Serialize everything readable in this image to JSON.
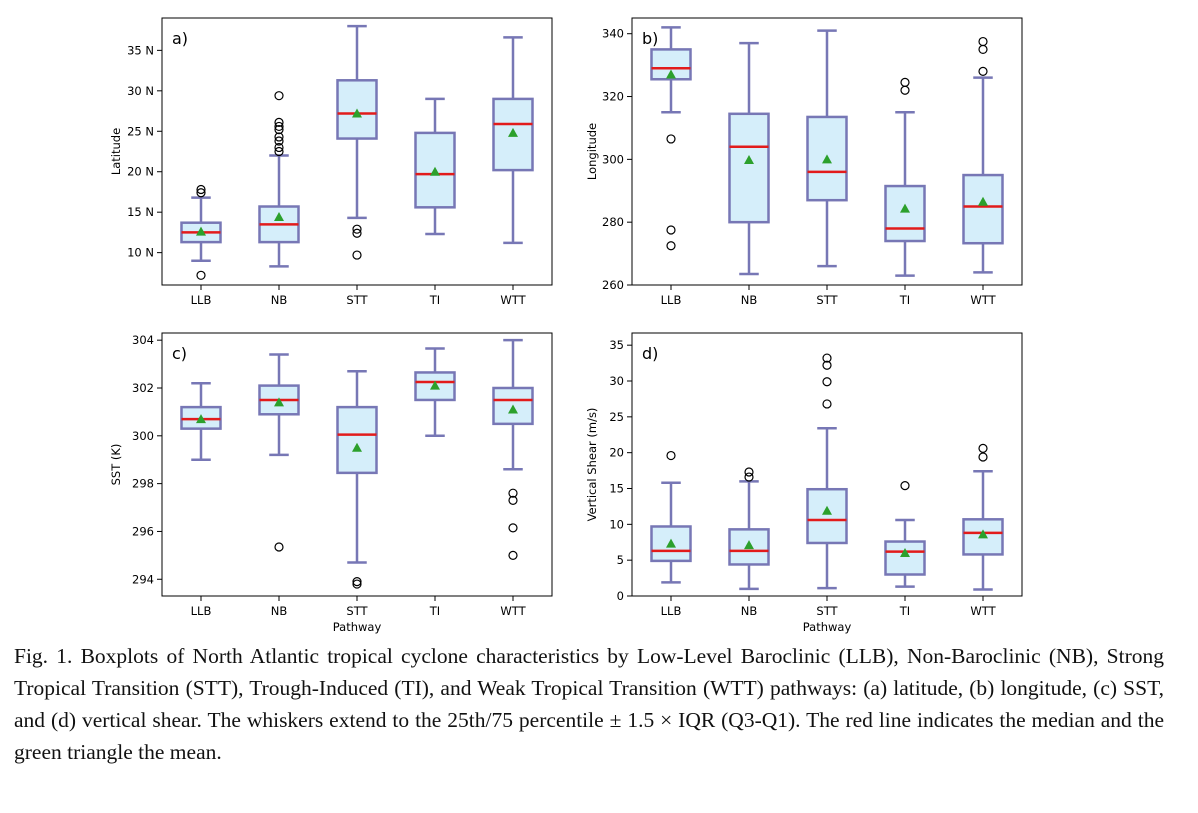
{
  "caption": "Fig. 1. Boxplots of North Atlantic tropical cyclone characteristics by Low-Level Baroclinic (LLB), Non-Baroclinic (NB), Strong Tropical Transition (STT), Trough-Induced (TI), and Weak Tropical Transition (WTT) pathways: (a) latitude, (b) longitude, (c) SST, and (d) vertical shear. The whiskers extend to the 25th/75 percentile ± 1.5 × IQR (Q3-Q1). The red line indicates the median and the green triangle the mean.",
  "colors": {
    "box_fill": "#d5eefa",
    "box_edge": "#7777b5",
    "median": "#e21b1b",
    "mean": "#2ca02c",
    "axis": "#000000"
  },
  "chart_data": [
    {
      "type": "box",
      "panel_label": "a)",
      "categories": [
        "LLB",
        "NB",
        "STT",
        "TI",
        "WTT"
      ],
      "xlabel": "",
      "ylabel": "Latitude",
      "ylim": [
        6,
        39
      ],
      "yticks": [
        10,
        15,
        20,
        25,
        30,
        35
      ],
      "ytick_labels": [
        "10 N",
        "15 N",
        "20 N",
        "25 N",
        "30 N",
        "35 N"
      ],
      "boxes": [
        {
          "whisker_low": 9,
          "q1": 11.3,
          "median": 12.5,
          "q3": 13.7,
          "whisker_high": 16.8,
          "mean": 12.6,
          "outliers": [
            7.2,
            17.4,
            17.8
          ]
        },
        {
          "whisker_low": 8.3,
          "q1": 11.3,
          "median": 13.5,
          "q3": 15.7,
          "whisker_high": 22,
          "mean": 14.4,
          "outliers": [
            22.5,
            23,
            23.8,
            24.3,
            25.2,
            25.6,
            26.1,
            29.4
          ]
        },
        {
          "whisker_low": 14.3,
          "q1": 24.1,
          "median": 27.2,
          "q3": 31.3,
          "whisker_high": 38,
          "mean": 27.2,
          "outliers": [
            9.7,
            12.4,
            12.9
          ]
        },
        {
          "whisker_low": 12.3,
          "q1": 15.6,
          "median": 19.7,
          "q3": 24.8,
          "whisker_high": 29,
          "mean": 20,
          "outliers": []
        },
        {
          "whisker_low": 11.2,
          "q1": 20.2,
          "median": 25.9,
          "q3": 29,
          "whisker_high": 36.6,
          "mean": 24.8,
          "outliers": []
        }
      ]
    },
    {
      "type": "box",
      "panel_label": "b)",
      "categories": [
        "LLB",
        "NB",
        "STT",
        "TI",
        "WTT"
      ],
      "xlabel": "",
      "ylabel": "Longitude",
      "ylim": [
        260,
        345
      ],
      "yticks": [
        260,
        280,
        300,
        320,
        340
      ],
      "ytick_labels": [
        "260",
        "280",
        "300",
        "320",
        "340"
      ],
      "boxes": [
        {
          "whisker_low": 315,
          "q1": 325.5,
          "median": 329,
          "q3": 335,
          "whisker_high": 342,
          "mean": 327,
          "outliers": [
            306.5,
            277.5,
            272.5
          ]
        },
        {
          "whisker_low": 263.5,
          "q1": 280,
          "median": 304,
          "q3": 314.5,
          "whisker_high": 337,
          "mean": 299.8,
          "outliers": []
        },
        {
          "whisker_low": 266,
          "q1": 287,
          "median": 296,
          "q3": 313.5,
          "whisker_high": 341,
          "mean": 300,
          "outliers": []
        },
        {
          "whisker_low": 263,
          "q1": 274,
          "median": 278,
          "q3": 291.5,
          "whisker_high": 315,
          "mean": 284.3,
          "outliers": [
            322,
            324.5
          ]
        },
        {
          "whisker_low": 264,
          "q1": 273.3,
          "median": 285,
          "q3": 295,
          "whisker_high": 326,
          "mean": 286.5,
          "outliers": [
            328,
            335,
            337.5
          ]
        }
      ]
    },
    {
      "type": "box",
      "panel_label": "c)",
      "categories": [
        "LLB",
        "NB",
        "STT",
        "TI",
        "WTT"
      ],
      "xlabel": "Pathway",
      "ylabel": "SST (K)",
      "ylim": [
        293.3,
        304.3
      ],
      "yticks": [
        294,
        296,
        298,
        300,
        302,
        304
      ],
      "ytick_labels": [
        "294",
        "296",
        "298",
        "300",
        "302",
        "304"
      ],
      "boxes": [
        {
          "whisker_low": 299,
          "q1": 300.3,
          "median": 300.7,
          "q3": 301.2,
          "whisker_high": 302.2,
          "mean": 300.7,
          "outliers": []
        },
        {
          "whisker_low": 299.2,
          "q1": 300.9,
          "median": 301.5,
          "q3": 302.1,
          "whisker_high": 303.4,
          "mean": 301.4,
          "outliers": [
            295.35
          ]
        },
        {
          "whisker_low": 294.7,
          "q1": 298.45,
          "median": 300.05,
          "q3": 301.2,
          "whisker_high": 302.7,
          "mean": 299.5,
          "outliers": [
            293.8,
            293.9
          ]
        },
        {
          "whisker_low": 300,
          "q1": 301.5,
          "median": 302.25,
          "q3": 302.65,
          "whisker_high": 303.65,
          "mean": 302.1,
          "outliers": []
        },
        {
          "whisker_low": 298.6,
          "q1": 300.5,
          "median": 301.5,
          "q3": 302,
          "whisker_high": 304,
          "mean": 301.1,
          "outliers": [
            297.6,
            297.3,
            296.15,
            295
          ]
        }
      ]
    },
    {
      "type": "box",
      "panel_label": "d)",
      "categories": [
        "LLB",
        "NB",
        "STT",
        "TI",
        "WTT"
      ],
      "xlabel": "Pathway",
      "ylabel": "Vertical Shear (m/s)",
      "ylim": [
        0,
        36.7
      ],
      "yticks": [
        0,
        5,
        10,
        15,
        20,
        25,
        30,
        35
      ],
      "ytick_labels": [
        "0",
        "5",
        "10",
        "15",
        "20",
        "25",
        "30",
        "35"
      ],
      "boxes": [
        {
          "whisker_low": 1.9,
          "q1": 4.9,
          "median": 6.3,
          "q3": 9.7,
          "whisker_high": 15.8,
          "mean": 7.3,
          "outliers": [
            19.6
          ]
        },
        {
          "whisker_low": 1,
          "q1": 4.4,
          "median": 6.3,
          "q3": 9.3,
          "whisker_high": 16,
          "mean": 7.1,
          "outliers": [
            16.6,
            17.3
          ]
        },
        {
          "whisker_low": 1.1,
          "q1": 7.4,
          "median": 10.6,
          "q3": 14.9,
          "whisker_high": 23.4,
          "mean": 11.9,
          "outliers": [
            26.8,
            29.9,
            32.2,
            33.2
          ]
        },
        {
          "whisker_low": 1.3,
          "q1": 3,
          "median": 6.2,
          "q3": 7.6,
          "whisker_high": 10.6,
          "mean": 6,
          "outliers": [
            15.4
          ]
        },
        {
          "whisker_low": 0.9,
          "q1": 5.8,
          "median": 8.8,
          "q3": 10.7,
          "whisker_high": 17.4,
          "mean": 8.6,
          "outliers": [
            19.4,
            20.6
          ]
        }
      ]
    }
  ]
}
